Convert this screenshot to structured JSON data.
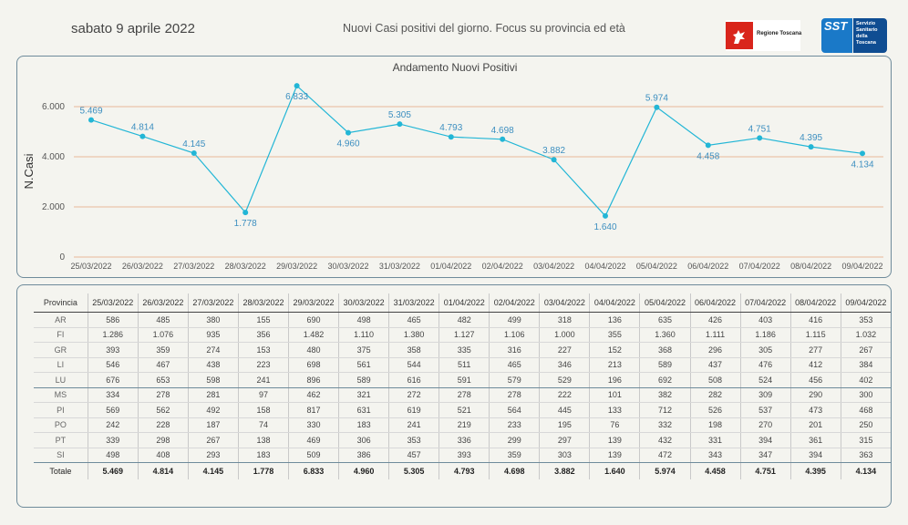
{
  "header": {
    "date": "sabato 9 aprile 2022",
    "subtitle": "Nuovi Casi positivi del giorno. Focus su provincia ed età",
    "logo_rt_text": "Regione Toscana",
    "logo_sst_short": "SST",
    "logo_sst_lines": [
      "Servizio",
      "Sanitario",
      "della",
      "Toscana"
    ]
  },
  "colors": {
    "line": "#22b6d6",
    "label": "#3d8fc0",
    "grid": "#e7b79a",
    "panel_border": "#6e8b9b"
  },
  "chart_data": {
    "type": "line",
    "title": "Andamento Nuovi Positivi",
    "ylabel": "N.Casi",
    "xlabel": "",
    "ylim": [
      0,
      7000
    ],
    "yticks": [
      0,
      2000,
      4000,
      6000
    ],
    "ytick_labels": [
      "0",
      "2.000",
      "4.000",
      "6.000"
    ],
    "grid": true,
    "x": [
      "25/03/2022",
      "26/03/2022",
      "27/03/2022",
      "28/03/2022",
      "29/03/2022",
      "30/03/2022",
      "31/03/2022",
      "01/04/2022",
      "02/04/2022",
      "03/04/2022",
      "04/04/2022",
      "05/04/2022",
      "06/04/2022",
      "07/04/2022",
      "08/04/2022",
      "09/04/2022"
    ],
    "series": [
      {
        "values": [
          5469,
          4814,
          4145,
          1778,
          6833,
          4960,
          5305,
          4793,
          4698,
          3882,
          1640,
          5974,
          4458,
          4751,
          4395,
          4134
        ],
        "labels": [
          "5.469",
          "4.814",
          "4.145",
          "1.778",
          "6.833",
          "4.960",
          "5.305",
          "4.793",
          "4.698",
          "3.882",
          "1.640",
          "5.974",
          "4.458",
          "4.751",
          "4.395",
          "4.134"
        ],
        "label_pos": [
          "above",
          "above",
          "above",
          "below",
          "below",
          "below",
          "above",
          "above",
          "above",
          "above",
          "below",
          "above",
          "below",
          "above",
          "above",
          "below"
        ]
      }
    ]
  },
  "table": {
    "header_label": "Provincia",
    "dates": [
      "25/03/2022",
      "26/03/2022",
      "27/03/2022",
      "28/03/2022",
      "29/03/2022",
      "30/03/2022",
      "31/03/2022",
      "01/04/2022",
      "02/04/2022",
      "03/04/2022",
      "04/04/2022",
      "05/04/2022",
      "06/04/2022",
      "07/04/2022",
      "08/04/2022",
      "09/04/2022"
    ],
    "rows": [
      {
        "prov": "AR",
        "values": [
          "586",
          "485",
          "380",
          "155",
          "690",
          "498",
          "465",
          "482",
          "499",
          "318",
          "136",
          "635",
          "426",
          "403",
          "416",
          "353"
        ]
      },
      {
        "prov": "FI",
        "values": [
          "1.286",
          "1.076",
          "935",
          "356",
          "1.482",
          "1.110",
          "1.380",
          "1.127",
          "1.106",
          "1.000",
          "355",
          "1.360",
          "1.111",
          "1.186",
          "1.115",
          "1.032"
        ]
      },
      {
        "prov": "GR",
        "values": [
          "393",
          "359",
          "274",
          "153",
          "480",
          "375",
          "358",
          "335",
          "316",
          "227",
          "152",
          "368",
          "296",
          "305",
          "277",
          "267"
        ]
      },
      {
        "prov": "LI",
        "values": [
          "546",
          "467",
          "438",
          "223",
          "698",
          "561",
          "544",
          "511",
          "465",
          "346",
          "213",
          "589",
          "437",
          "476",
          "412",
          "384"
        ]
      },
      {
        "prov": "LU",
        "values": [
          "676",
          "653",
          "598",
          "241",
          "896",
          "589",
          "616",
          "591",
          "579",
          "529",
          "196",
          "692",
          "508",
          "524",
          "456",
          "402"
        ]
      },
      {
        "prov": "MS",
        "values": [
          "334",
          "278",
          "281",
          "97",
          "462",
          "321",
          "272",
          "278",
          "278",
          "222",
          "101",
          "382",
          "282",
          "309",
          "290",
          "300"
        ]
      },
      {
        "prov": "PI",
        "values": [
          "569",
          "562",
          "492",
          "158",
          "817",
          "631",
          "619",
          "521",
          "564",
          "445",
          "133",
          "712",
          "526",
          "537",
          "473",
          "468"
        ]
      },
      {
        "prov": "PO",
        "values": [
          "242",
          "228",
          "187",
          "74",
          "330",
          "183",
          "241",
          "219",
          "233",
          "195",
          "76",
          "332",
          "198",
          "270",
          "201",
          "250"
        ]
      },
      {
        "prov": "PT",
        "values": [
          "339",
          "298",
          "267",
          "138",
          "469",
          "306",
          "353",
          "336",
          "299",
          "297",
          "139",
          "432",
          "331",
          "394",
          "361",
          "315"
        ]
      },
      {
        "prov": "SI",
        "values": [
          "498",
          "408",
          "293",
          "183",
          "509",
          "386",
          "457",
          "393",
          "359",
          "303",
          "139",
          "472",
          "343",
          "347",
          "394",
          "363"
        ]
      }
    ],
    "total": {
      "prov": "Totale",
      "values": [
        "5.469",
        "4.814",
        "4.145",
        "1.778",
        "6.833",
        "4.960",
        "5.305",
        "4.793",
        "4.698",
        "3.882",
        "1.640",
        "5.974",
        "4.458",
        "4.751",
        "4.395",
        "4.134"
      ]
    }
  }
}
